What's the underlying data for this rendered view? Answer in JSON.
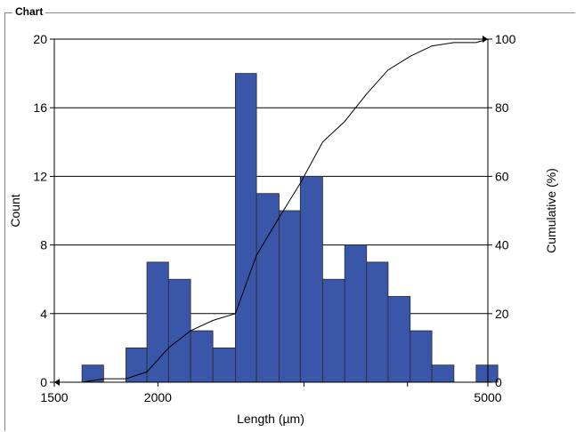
{
  "panel": {
    "title": "Chart"
  },
  "colors": {
    "bar": "#3a56a8",
    "bar_stroke": "#2a2a2a",
    "grid": "#000000",
    "line": "#000000"
  },
  "chart_data": {
    "type": "bar",
    "title": "",
    "xlabel": "Length (µm)",
    "ylabel": "Count",
    "y2label": "Cumulative (%)",
    "x_scale": "log",
    "xlim": [
      1500,
      5000
    ],
    "ylim": [
      0,
      20
    ],
    "y2lim": [
      0,
      100
    ],
    "x_ticks": [
      "1500",
      "2000",
      "5000"
    ],
    "y_ticks": [
      "0",
      "4",
      "8",
      "12",
      "16",
      "20"
    ],
    "y2_ticks": [
      "0",
      "20",
      "40",
      "60",
      "80",
      "100"
    ],
    "bins": [
      {
        "x0": 1620,
        "x1": 1720,
        "count": 1
      },
      {
        "x0": 1720,
        "x1": 1830,
        "count": 0
      },
      {
        "x0": 1830,
        "x1": 1940,
        "count": 2
      },
      {
        "x0": 1940,
        "x1": 2060,
        "count": 7
      },
      {
        "x0": 2060,
        "x1": 2190,
        "count": 6
      },
      {
        "x0": 2190,
        "x1": 2330,
        "count": 3
      },
      {
        "x0": 2330,
        "x1": 2480,
        "count": 2
      },
      {
        "x0": 2480,
        "x1": 2630,
        "count": 18
      },
      {
        "x0": 2630,
        "x1": 2800,
        "count": 11
      },
      {
        "x0": 2800,
        "x1": 2970,
        "count": 10
      },
      {
        "x0": 2970,
        "x1": 3160,
        "count": 12
      },
      {
        "x0": 3160,
        "x1": 3360,
        "count": 6
      },
      {
        "x0": 3360,
        "x1": 3570,
        "count": 8
      },
      {
        "x0": 3570,
        "x1": 3790,
        "count": 7
      },
      {
        "x0": 3790,
        "x1": 4030,
        "count": 5
      },
      {
        "x0": 4030,
        "x1": 4280,
        "count": 3
      },
      {
        "x0": 4280,
        "x1": 4550,
        "count": 1
      },
      {
        "x0": 4550,
        "x1": 4840,
        "count": 0
      },
      {
        "x0": 4840,
        "x1": 5140,
        "count": 1
      }
    ],
    "cumulative": {
      "x": [
        1500,
        1620,
        1720,
        1830,
        1940,
        2060,
        2190,
        2330,
        2480,
        2630,
        2800,
        2970,
        3160,
        3360,
        3570,
        3790,
        4030,
        4280,
        4550,
        4840,
        5000
      ],
      "y": [
        0,
        0,
        1,
        1,
        3,
        10,
        15,
        18,
        20,
        37,
        48,
        58,
        70,
        76,
        84,
        91,
        95,
        98,
        99,
        99,
        100
      ]
    },
    "grid": true,
    "legend": "none"
  }
}
